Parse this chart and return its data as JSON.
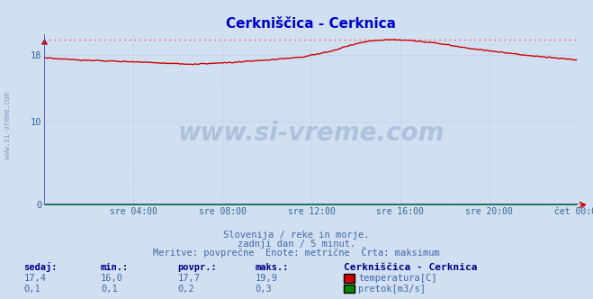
{
  "title": "Cerkniščica - Cerknica",
  "title_color": "#0000cc",
  "background_color": "#d0e0f0",
  "plot_bg_color": "#d0e0f0",
  "grid_color": "#b0b8e0",
  "xticklabels": [
    "sre 04:00",
    "sre 08:00",
    "sre 12:00",
    "sre 16:00",
    "sre 20:00",
    "čet 00:00"
  ],
  "xlabel_color": "#404040",
  "yticks": [
    0,
    10,
    18
  ],
  "ylim": [
    0,
    20.5
  ],
  "xlim": [
    0,
    288
  ],
  "temp_color": "#cc0000",
  "flow_color": "#008800",
  "max_line_color": "#ff4444",
  "watermark_text": "www.si-vreme.com",
  "watermark_color": "#1a3a8a",
  "subtitle1": "Slovenija / reke in morje.",
  "subtitle2": "zadnji dan / 5 minut.",
  "subtitle3": "Meritve: povprečne  Enote: metrične  Črta: maksimum",
  "subtitle_color": "#4466aa",
  "legend_title": "Cerkniščica - Cerknica",
  "legend_title_color": "#000088",
  "legend_color": "#4466aa",
  "stats_color": "#4466aa",
  "stats_bold_color": "#000088",
  "temp_sedaj": "17,4",
  "temp_min": "16,0",
  "temp_povpr": "17,7",
  "temp_maks": "19,9",
  "flow_sedaj": "0,1",
  "flow_min": "0,1",
  "flow_povpr": "0,2",
  "flow_maks": "0,3",
  "max_temp": 19.9,
  "n_points": 288,
  "keypoints_x": [
    0,
    20,
    50,
    80,
    100,
    120,
    140,
    155,
    165,
    175,
    185,
    195,
    210,
    230,
    260,
    288
  ],
  "keypoints_y": [
    17.65,
    17.4,
    17.2,
    16.9,
    17.1,
    17.4,
    17.8,
    18.5,
    19.2,
    19.7,
    19.9,
    19.8,
    19.5,
    18.8,
    18.0,
    17.4
  ],
  "flow_base": 0.04,
  "flow_scale": 0.25
}
